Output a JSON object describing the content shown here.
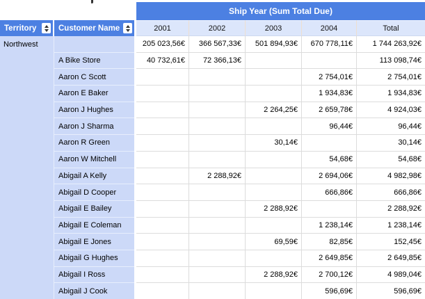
{
  "pivot": {
    "banner_title": "Ship Year (Sum Total Due)",
    "row_headers": [
      {
        "label": "Territory"
      },
      {
        "label": "Customer Name"
      }
    ],
    "column_headers": [
      "2001",
      "2002",
      "2003",
      "2004",
      "Total"
    ],
    "territory_group": "Northwest",
    "rows": [
      {
        "territory": "Northwest",
        "customer": "",
        "values": [
          "205 023,56€",
          "366 567,33€",
          "501 894,93€",
          "670 778,11€",
          "1 744 263,92€"
        ]
      },
      {
        "territory": "",
        "customer": "A Bike Store",
        "values": [
          "40 732,61€",
          "72 366,13€",
          "",
          "",
          "113 098,74€"
        ]
      },
      {
        "territory": "",
        "customer": "Aaron C Scott",
        "values": [
          "",
          "",
          "",
          "2 754,01€",
          "2 754,01€"
        ]
      },
      {
        "territory": "",
        "customer": "Aaron E Baker",
        "values": [
          "",
          "",
          "",
          "1 934,83€",
          "1 934,83€"
        ]
      },
      {
        "territory": "",
        "customer": "Aaron J Hughes",
        "values": [
          "",
          "",
          "2 264,25€",
          "2 659,78€",
          "4 924,03€"
        ]
      },
      {
        "territory": "",
        "customer": "Aaron J Sharma",
        "values": [
          "",
          "",
          "",
          "96,44€",
          "96,44€"
        ]
      },
      {
        "territory": "",
        "customer": "Aaron R Green",
        "values": [
          "",
          "",
          "30,14€",
          "",
          "30,14€"
        ]
      },
      {
        "territory": "",
        "customer": "Aaron W Mitchell",
        "values": [
          "",
          "",
          "",
          "54,68€",
          "54,68€"
        ]
      },
      {
        "territory": "",
        "customer": "Abigail A Kelly",
        "values": [
          "",
          "2 288,92€",
          "",
          "2 694,06€",
          "4 982,98€"
        ]
      },
      {
        "territory": "",
        "customer": "Abigail D Cooper",
        "values": [
          "",
          "",
          "",
          "666,86€",
          "666,86€"
        ]
      },
      {
        "territory": "",
        "customer": "Abigail E Bailey",
        "values": [
          "",
          "",
          "2 288,92€",
          "",
          "2 288,92€"
        ]
      },
      {
        "territory": "",
        "customer": "Abigail E Coleman",
        "values": [
          "",
          "",
          "",
          "1 238,14€",
          "1 238,14€"
        ]
      },
      {
        "territory": "",
        "customer": "Abigail E Jones",
        "values": [
          "",
          "",
          "69,59€",
          "82,85€",
          "152,45€"
        ]
      },
      {
        "territory": "",
        "customer": "Abigail G Hughes",
        "values": [
          "",
          "",
          "",
          "2 649,85€",
          "2 649,85€"
        ]
      },
      {
        "territory": "",
        "customer": "Abigail I Ross",
        "values": [
          "",
          "",
          "2 288,92€",
          "2 700,12€",
          "4 989,04€"
        ]
      },
      {
        "territory": "",
        "customer": "Abigail J Cook",
        "values": [
          "",
          "",
          "",
          "596,69€",
          "596,69€"
        ]
      }
    ]
  },
  "colors": {
    "header_blue": "#4c80e2",
    "column_header_bg": "#dce6fb",
    "row_label_bg": "#ccd9f8",
    "grid_line": "#dcdcdc",
    "label_grid_line": "#e7eefd",
    "header_text": "#ffffff",
    "cell_text": "#000000"
  }
}
